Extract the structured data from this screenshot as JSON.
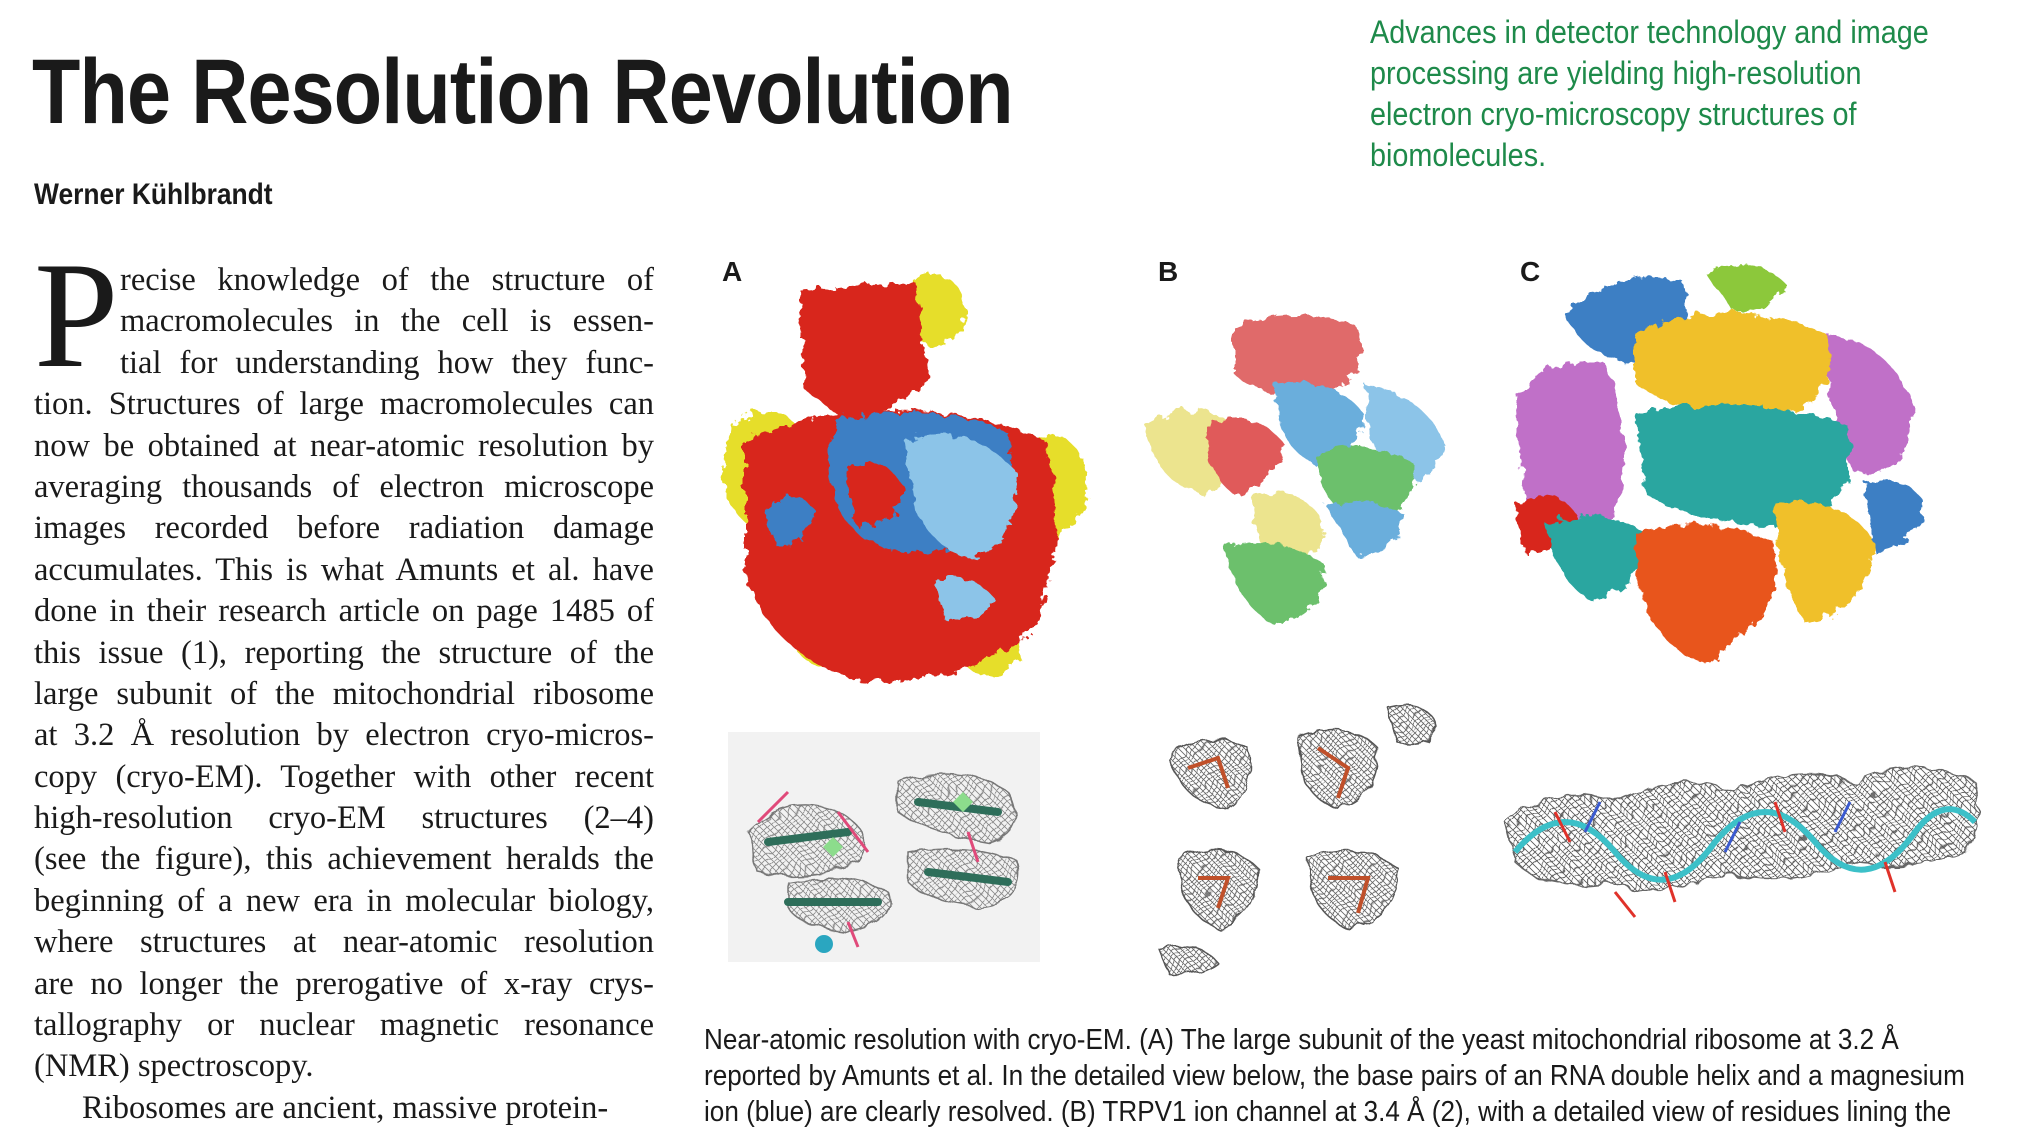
{
  "article": {
    "title": "The Resolution Revolution",
    "author": "Werner Kühlbrandt",
    "deck": [
      "Advances in detector technology and image",
      "processing are yielding high-resolution",
      "electron cryo-microscopy structures of",
      "biomolecules."
    ]
  },
  "body": {
    "dropcap": "P",
    "lines": [
      "recise knowledge of the structure of",
      "macromolecules in the cell is essen-",
      "tial for understanding how they func-",
      "tion. Structures of large macromolecules can",
      "now be obtained at near-atomic resolution by",
      "averaging thousands of electron microscope",
      "images recorded before radiation damage",
      "accumulates. This is what Amunts et al. have",
      "done in their research article on page 1485 of",
      "this issue (1), reporting the structure of the",
      "large subunit of the mitochondrial ribosome",
      "at 3.2 Å resolution by electron cryo-micros-",
      "copy (cryo-EM). Together with other recent",
      "high-resolution cryo-EM structures (2–4)",
      "(see the figure), this achievement heralds the",
      "beginning of a new era in molecular biology,",
      "where structures at near-atomic resolution",
      "are no longer the prerogative of x-ray crys-",
      "tallography or nuclear magnetic resonance",
      "(NMR) spectroscopy.",
      "Ribosomes are ancient, massive protein-"
    ]
  },
  "figure": {
    "labels": [
      "A",
      "B",
      "C"
    ],
    "caption_lines": [
      "Near-atomic resolution with cryo-EM. (A) The large subunit of the yeast mitochondrial ribosome at 3.2 Å",
      "reported by Amunts et al. In the detailed view below, the base pairs of an RNA double helix and a magnesium",
      "ion (blue) are clearly resolved. (B) TRPV1 ion channel at 3.4 Å (2), with a detailed view of residues lining the"
    ]
  },
  "colors": {
    "deck": "#1e8a4a",
    "red": "#d8281e",
    "blue": "#3d7fc4",
    "lightblue": "#8cc4e8",
    "yellow": "#e6de2a",
    "paleyellow": "#ece48e",
    "green": "#6cc06c",
    "salmon": "#e05a5a",
    "teal": "#2aa6a0",
    "purple": "#c070c8",
    "orange": "#e8541e",
    "gold": "#f0c02a",
    "lime": "#8cc83a"
  }
}
